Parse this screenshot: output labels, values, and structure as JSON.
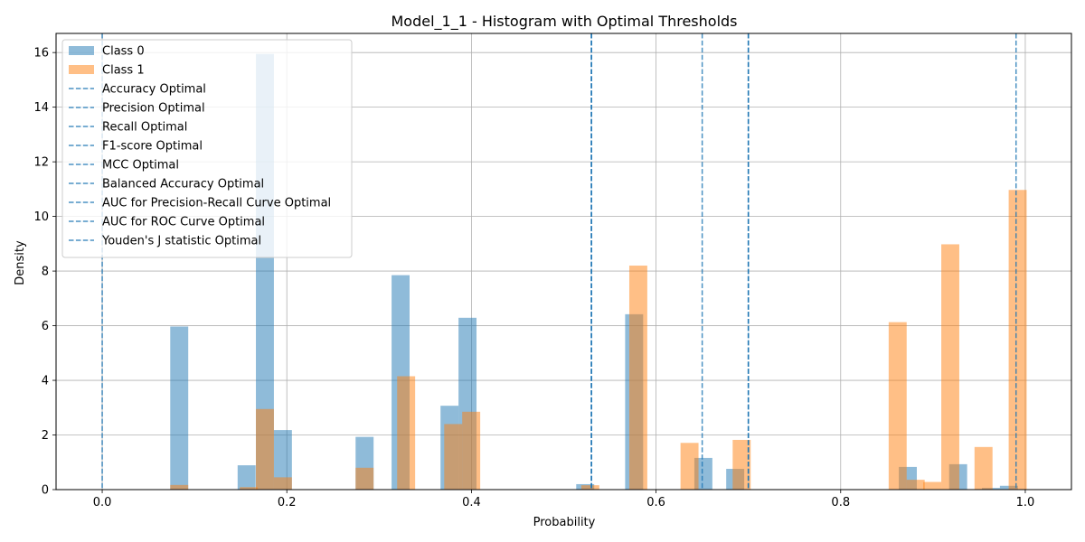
{
  "chart_data": {
    "type": "bar",
    "title": "Model_1_1 - Histogram with Optimal Thresholds",
    "xlabel": "Probability",
    "ylabel": "Density",
    "xlim": [
      -0.05,
      1.05
    ],
    "ylim": [
      0,
      16.7
    ],
    "xticks": [
      "0.0",
      "0.2",
      "0.4",
      "0.6",
      "0.8",
      "1.0"
    ],
    "xtick_values": [
      0.0,
      0.2,
      0.4,
      0.6,
      0.8,
      1.0
    ],
    "yticks": [
      "0",
      "2",
      "4",
      "6",
      "8",
      "10",
      "12",
      "14",
      "16"
    ],
    "ytick_values": [
      0,
      2,
      4,
      6,
      8,
      10,
      12,
      14,
      16
    ],
    "grid": true,
    "legend_position": "upper-left",
    "series": [
      {
        "name": "Class 0",
        "color": "#1f77b4",
        "alpha": 0.5,
        "bin_width": 0.0195,
        "bins": [
          {
            "x": 0.0737,
            "y": 5.97
          },
          {
            "x": 0.1467,
            "y": 0.89
          },
          {
            "x": 0.1665,
            "y": 15.95
          },
          {
            "x": 0.186,
            "y": 2.18
          },
          {
            "x": 0.2745,
            "y": 1.93
          },
          {
            "x": 0.3135,
            "y": 7.85
          },
          {
            "x": 0.3665,
            "y": 3.07
          },
          {
            "x": 0.386,
            "y": 6.29
          },
          {
            "x": 0.5135,
            "y": 0.2
          },
          {
            "x": 0.5665,
            "y": 6.42
          },
          {
            "x": 0.6415,
            "y": 1.16
          },
          {
            "x": 0.676,
            "y": 0.76
          },
          {
            "x": 0.863,
            "y": 0.83
          },
          {
            "x": 0.9175,
            "y": 0.93
          },
          {
            "x": 0.953,
            "y": 0.06
          },
          {
            "x": 0.9725,
            "y": 0.14
          }
        ]
      },
      {
        "name": "Class 1",
        "color": "#ff7f0e",
        "alpha": 0.5,
        "bin_width": 0.0195,
        "bins": [
          {
            "x": 0.0737,
            "y": 0.17
          },
          {
            "x": 0.149,
            "y": 0.09
          },
          {
            "x": 0.1665,
            "y": 2.95
          },
          {
            "x": 0.186,
            "y": 0.45
          },
          {
            "x": 0.2745,
            "y": 0.8
          },
          {
            "x": 0.3195,
            "y": 4.15
          },
          {
            "x": 0.3705,
            "y": 2.4
          },
          {
            "x": 0.39,
            "y": 2.85
          },
          {
            "x": 0.519,
            "y": 0.16
          },
          {
            "x": 0.571,
            "y": 8.2
          },
          {
            "x": 0.6265,
            "y": 1.71
          },
          {
            "x": 0.683,
            "y": 1.82
          },
          {
            "x": 0.852,
            "y": 6.13
          },
          {
            "x": 0.8715,
            "y": 0.36
          },
          {
            "x": 0.8895,
            "y": 0.28
          },
          {
            "x": 0.909,
            "y": 8.98
          },
          {
            "x": 0.945,
            "y": 1.56
          },
          {
            "x": 0.982,
            "y": 10.97
          }
        ]
      }
    ],
    "thresholds": [
      {
        "name": "Accuracy Optimal",
        "x": 0.53
      },
      {
        "name": "Precision Optimal",
        "x": 0.99
      },
      {
        "name": "Recall Optimal",
        "x": 0.0
      },
      {
        "name": "F1-score Optimal",
        "x": 0.53
      },
      {
        "name": "MCC Optimal",
        "x": 0.7
      },
      {
        "name": "Balanced Accuracy Optimal",
        "x": 0.7
      },
      {
        "name": "AUC for Precision-Recall Curve Optimal",
        "x": 0.53
      },
      {
        "name": "AUC for ROC Curve Optimal",
        "x": 0.65
      },
      {
        "name": "Youden's J statistic Optimal",
        "x": 0.7
      }
    ],
    "threshold_color": "#1f77b4"
  }
}
